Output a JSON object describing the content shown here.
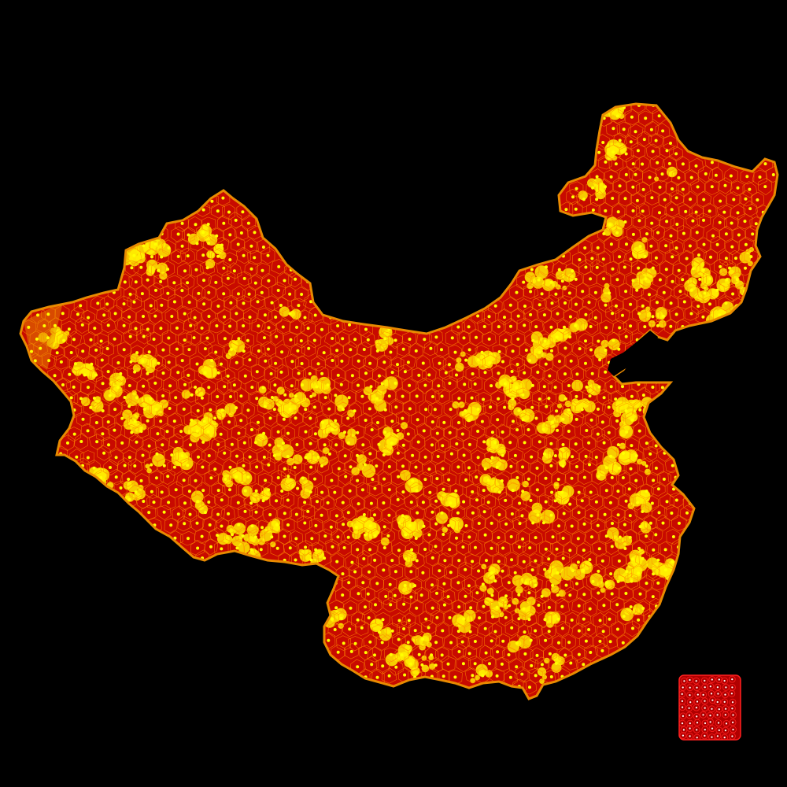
{
  "map": {
    "style": "voronoi-mosaic",
    "colors": {
      "background": "#000000",
      "cell_fill": "#c80a00",
      "cell_edge": "#ff8c00",
      "seed_dot": "#ffff00",
      "glow": "#ffef00",
      "fringe": "#e88a00",
      "inset_border": "#ff2020",
      "inset_fill": "#b00000",
      "inset_dot": "#ffffff"
    },
    "icons": {
      "seed": "dot",
      "legend": "voronoi-sample-swatch"
    }
  }
}
